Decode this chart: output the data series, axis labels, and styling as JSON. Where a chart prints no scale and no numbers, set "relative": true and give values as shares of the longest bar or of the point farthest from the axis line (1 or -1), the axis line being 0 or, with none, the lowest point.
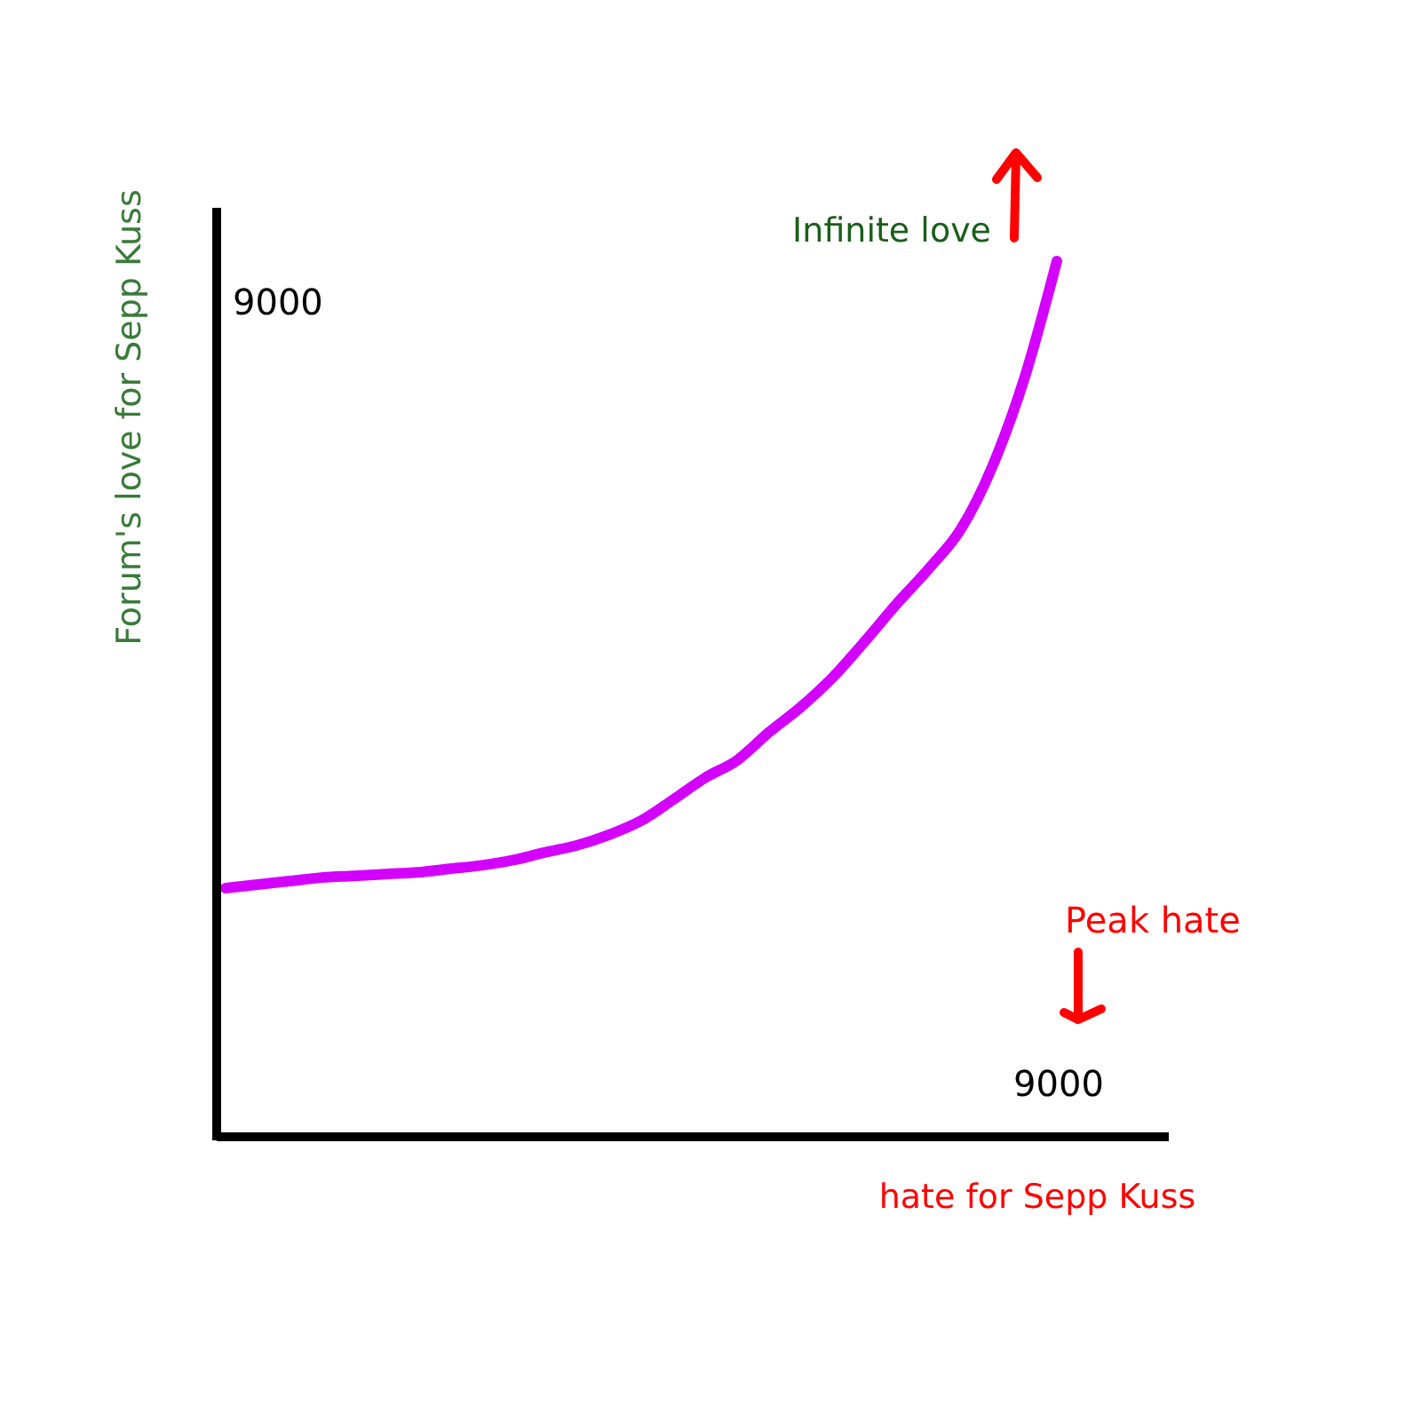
{
  "chart_data": {
    "type": "line",
    "relative": true,
    "xlabel": "hate for Sepp Kuss",
    "ylabel": "Forum's love for Sepp Kuss",
    "categories": [
      null,
      null,
      null,
      null,
      null,
      null,
      null,
      null,
      null,
      null,
      null,
      null,
      null,
      null,
      null,
      null,
      null,
      null,
      null,
      null,
      null,
      null,
      null,
      null,
      null,
      null,
      null
    ],
    "series": [
      {
        "color": "#d400ff",
        "values": [
          0.284,
          0.288,
          0.292,
          0.296,
          0.298,
          0.3,
          0.302,
          0.306,
          0.31,
          0.316,
          0.325,
          0.333,
          0.345,
          0.361,
          0.385,
          0.41,
          0.43,
          0.462,
          0.491,
          0.525,
          0.566,
          0.609,
          0.649,
          0.694,
          0.767,
          0.868,
          1
        ]
      }
    ],
    "annotations": [
      "9000",
      "9000",
      "Infinite love",
      "Peak hate"
    ]
  }
}
